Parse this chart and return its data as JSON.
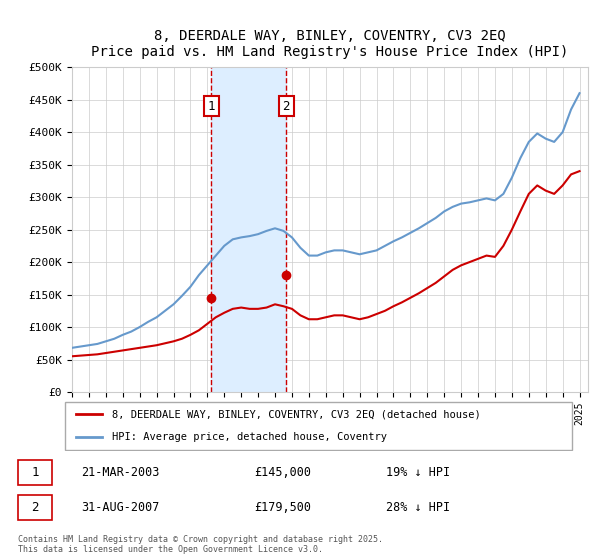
{
  "title": "8, DEERDALE WAY, BINLEY, COVENTRY, CV3 2EQ",
  "subtitle": "Price paid vs. HM Land Registry's House Price Index (HPI)",
  "ylabel": "",
  "xlabel": "",
  "ylim": [
    0,
    500000
  ],
  "yticks": [
    0,
    50000,
    100000,
    150000,
    200000,
    250000,
    300000,
    350000,
    400000,
    450000,
    500000
  ],
  "ytick_labels": [
    "£0",
    "£50K",
    "£100K",
    "£150K",
    "£200K",
    "£250K",
    "£300K",
    "£350K",
    "£400K",
    "£450K",
    "£500K"
  ],
  "sale1_date": 2003.22,
  "sale1_price": 145000,
  "sale1_label": "1",
  "sale1_text": "21-MAR-2003",
  "sale1_amount": "£145,000",
  "sale1_hpi": "19% ↓ HPI",
  "sale2_date": 2007.66,
  "sale2_price": 179500,
  "sale2_label": "2",
  "sale2_text": "31-AUG-2007",
  "sale2_amount": "£179,500",
  "sale2_hpi": "28% ↓ HPI",
  "red_line_color": "#cc0000",
  "blue_line_color": "#6699cc",
  "shade_color": "#ddeeff",
  "dashed_color": "#cc0000",
  "background_color": "#ffffff",
  "grid_color": "#cccccc",
  "legend_label_red": "8, DEERDALE WAY, BINLEY, COVENTRY, CV3 2EQ (detached house)",
  "legend_label_blue": "HPI: Average price, detached house, Coventry",
  "footer": "Contains HM Land Registry data © Crown copyright and database right 2025.\nThis data is licensed under the Open Government Licence v3.0.",
  "hpi_x": [
    1995,
    1995.5,
    1996,
    1996.5,
    1997,
    1997.5,
    1998,
    1998.5,
    1999,
    1999.5,
    2000,
    2000.5,
    2001,
    2001.5,
    2002,
    2002.5,
    2003,
    2003.5,
    2004,
    2004.5,
    2005,
    2005.5,
    2006,
    2006.5,
    2007,
    2007.5,
    2008,
    2008.5,
    2009,
    2009.5,
    2010,
    2010.5,
    2011,
    2011.5,
    2012,
    2012.5,
    2013,
    2013.5,
    2014,
    2014.5,
    2015,
    2015.5,
    2016,
    2016.5,
    2017,
    2017.5,
    2018,
    2018.5,
    2019,
    2019.5,
    2020,
    2020.5,
    2021,
    2021.5,
    2022,
    2022.5,
    2023,
    2023.5,
    2024,
    2024.5,
    2025
  ],
  "hpi_y": [
    68000,
    70000,
    72000,
    74000,
    78000,
    82000,
    88000,
    93000,
    100000,
    108000,
    115000,
    125000,
    135000,
    148000,
    162000,
    180000,
    195000,
    210000,
    225000,
    235000,
    238000,
    240000,
    243000,
    248000,
    252000,
    248000,
    238000,
    222000,
    210000,
    210000,
    215000,
    218000,
    218000,
    215000,
    212000,
    215000,
    218000,
    225000,
    232000,
    238000,
    245000,
    252000,
    260000,
    268000,
    278000,
    285000,
    290000,
    292000,
    295000,
    298000,
    295000,
    305000,
    330000,
    360000,
    385000,
    398000,
    390000,
    385000,
    400000,
    435000,
    460000
  ],
  "price_x": [
    1995,
    1995.5,
    1996,
    1996.5,
    1997,
    1997.5,
    1998,
    1998.5,
    1999,
    1999.5,
    2000,
    2000.5,
    2001,
    2001.5,
    2002,
    2002.5,
    2003,
    2003.5,
    2004,
    2004.5,
    2005,
    2005.5,
    2006,
    2006.5,
    2007,
    2007.5,
    2008,
    2008.5,
    2009,
    2009.5,
    2010,
    2010.5,
    2011,
    2011.5,
    2012,
    2012.5,
    2013,
    2013.5,
    2014,
    2014.5,
    2015,
    2015.5,
    2016,
    2016.5,
    2017,
    2017.5,
    2018,
    2018.5,
    2019,
    2019.5,
    2020,
    2020.5,
    2021,
    2021.5,
    2022,
    2022.5,
    2023,
    2023.5,
    2024,
    2024.5,
    2025
  ],
  "price_y": [
    55000,
    56000,
    57000,
    58000,
    60000,
    62000,
    64000,
    66000,
    68000,
    70000,
    72000,
    75000,
    78000,
    82000,
    88000,
    95000,
    105000,
    115000,
    122000,
    128000,
    130000,
    128000,
    128000,
    130000,
    135000,
    132000,
    128000,
    118000,
    112000,
    112000,
    115000,
    118000,
    118000,
    115000,
    112000,
    115000,
    120000,
    125000,
    132000,
    138000,
    145000,
    152000,
    160000,
    168000,
    178000,
    188000,
    195000,
    200000,
    205000,
    210000,
    208000,
    225000,
    250000,
    278000,
    305000,
    318000,
    310000,
    305000,
    318000,
    335000,
    340000
  ]
}
